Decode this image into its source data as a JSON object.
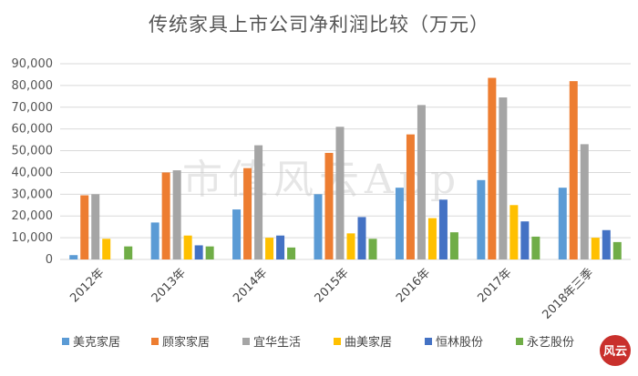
{
  "colors": {
    "series": [
      "#5b9bd5",
      "#ed7d31",
      "#a5a5a5",
      "#ffc000",
      "#4472c4",
      "#70ad47"
    ],
    "grid": "#d9d9d9",
    "seal": "#c9302c"
  },
  "watermark": "市值风云App",
  "seal": "风云",
  "chart_data": {
    "type": "bar",
    "title": "传统家具上市公司净利润比较（万元）",
    "xlabel": "",
    "ylabel": "",
    "ylim": [
      0,
      90000
    ],
    "yticks": [
      "0",
      "10,000",
      "20,000",
      "30,000",
      "40,000",
      "50,000",
      "60,000",
      "70,000",
      "80,000",
      "90,000"
    ],
    "grid": true,
    "legend_position": "bottom",
    "categories": [
      "2012年",
      "2013年",
      "2014年",
      "2015年",
      "2016年",
      "2017年",
      "2018年三季"
    ],
    "series": [
      {
        "name": "美克家居",
        "values": [
          2000,
          17000,
          23000,
          30000,
          33000,
          36500,
          33000
        ]
      },
      {
        "name": "顾家家居",
        "values": [
          29500,
          40000,
          42000,
          49000,
          57500,
          83500,
          82000
        ]
      },
      {
        "name": "宜华生活",
        "values": [
          30000,
          41000,
          52500,
          61000,
          71000,
          74500,
          53000
        ]
      },
      {
        "name": "曲美家居",
        "values": [
          9500,
          11000,
          10000,
          12000,
          19000,
          25000,
          10000
        ]
      },
      {
        "name": "恒林股份",
        "values": [
          null,
          6500,
          11000,
          19500,
          27500,
          17500,
          13500
        ]
      },
      {
        "name": "永艺股份",
        "values": [
          6000,
          6000,
          5500,
          9500,
          12500,
          10500,
          8000
        ]
      }
    ]
  }
}
